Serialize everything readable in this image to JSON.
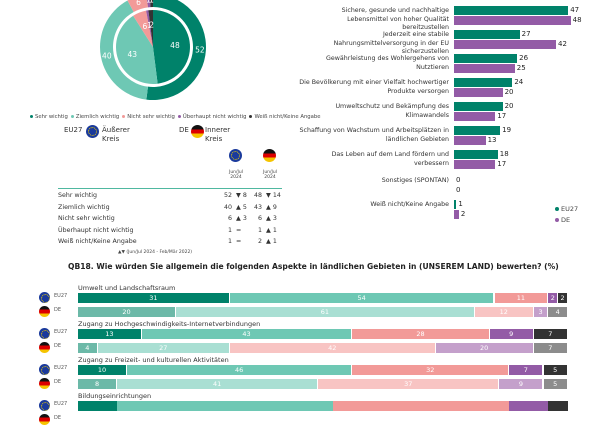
{
  "colors": {
    "sehr_wichtig": "#00826a",
    "ziemlich_wichtig": "#6ec8b4",
    "nicht_sehr_wichtig": "#f29a98",
    "ueberhaupt_nicht": "#935ba6",
    "weiss_nicht": "#333333",
    "de_sehr": "#6cb9a8",
    "de_ziemlich": "#a9dfd3",
    "de_nicht_sehr": "#f8c4c3",
    "de_ueberhaupt": "#c4a0cb",
    "de_weiss": "#8c8c8c",
    "eu27": "#00826a",
    "de": "#935ba6"
  },
  "donut": {
    "legend": [
      "Sehr wichtig",
      "Ziemlich wichtig",
      "Nicht sehr wichtig",
      "Überhaupt nicht wichtig",
      "Weiß nicht/Keine Angabe"
    ],
    "key_eu": "EU27",
    "key_eu_desc": "Äußerer Kreis",
    "key_de": "DE",
    "key_de_desc": "Innerer Kreis"
  },
  "table": {
    "col_eu_period": "Jun/Jul 2024",
    "col_de_period": "Jun/Jul 2024",
    "footnote": "▲▼ (Jun/Jul 2024 - Feb/Mär 2022)",
    "rows": [
      {
        "label": "Sehr wichtig",
        "eu": "52",
        "eu_change": "▼ 8",
        "de": "48",
        "de_change": "▼ 14"
      },
      {
        "label": "Ziemlich wichtig",
        "eu": "40",
        "eu_change": "▲ 5",
        "de": "43",
        "de_change": "▲ 9"
      },
      {
        "label": "Nicht sehr wichtig",
        "eu": "6",
        "eu_change": "▲ 3",
        "de": "6",
        "de_change": "▲ 3"
      },
      {
        "label": "Überhaupt nicht wichtig",
        "eu": "1",
        "eu_change": "=",
        "de": "1",
        "de_change": "▲ 1"
      },
      {
        "label": "Weiß nicht/Keine Angabe",
        "eu": "1",
        "eu_change": "=",
        "de": "2",
        "de_change": "▲ 1"
      }
    ]
  },
  "stacked": {
    "title": "QB18. Wie würden Sie allgemein die folgenden Aspekte in ländlichen Gebieten in (UNSEREM LAND) bewerten? (%)",
    "eu_code": "EU27",
    "de_code": "DE"
  },
  "chart_data": [
    {
      "type": "pie",
      "title": "",
      "categories": [
        "Sehr wichtig",
        "Ziemlich wichtig",
        "Nicht sehr wichtig",
        "Überhaupt nicht wichtig",
        "Weiß nicht/Keine Angabe"
      ],
      "series": [
        {
          "name": "EU27 (Äußerer Kreis)",
          "values": [
            52,
            40,
            6,
            1,
            1
          ]
        },
        {
          "name": "DE (Innerer Kreis)",
          "values": [
            48,
            43,
            6,
            1,
            2
          ]
        }
      ]
    },
    {
      "type": "bar",
      "orientation": "horizontal",
      "categories": [
        "Sichere, gesunde und nachhaltige Lebensmittel von hoher Qualität bereitzustellen",
        "Jederzeit eine stabile Nahrungsmittelversorgung in der EU sicherzustellen",
        "Gewährleistung des Wohlergehens von Nutztieren",
        "Die Bevölkerung mit einer Vielfalt hochwertiger Produkte versorgen",
        "Umweltschutz und Bekämpfung des Klimawandels",
        "Schaffung von Wachstum und Arbeitsplätzen in ländlichen Gebieten",
        "Das Leben auf dem Land fördern und verbessern",
        "Sonstiges (SPONTAN)",
        "Weiß nicht/Keine Angabe"
      ],
      "series": [
        {
          "name": "EU27",
          "values": [
            47,
            27,
            26,
            24,
            20,
            19,
            18,
            0,
            1
          ]
        },
        {
          "name": "DE",
          "values": [
            48,
            42,
            25,
            20,
            17,
            13,
            17,
            0,
            2
          ]
        }
      ],
      "legend": [
        "EU27",
        "DE"
      ],
      "legend_position": "bottom-right"
    },
    {
      "type": "bar",
      "orientation": "horizontal-stacked",
      "title": "QB18. Wie würden Sie allgemein die folgenden Aspekte in ländlichen Gebieten in (UNSEREM LAND) bewerten? (%)",
      "groups": [
        {
          "label": "Umwelt und Landschaftsraum",
          "eu": [
            31,
            54,
            11,
            2,
            2
          ],
          "de": [
            20,
            61,
            12,
            3,
            4
          ]
        },
        {
          "label": "Zugang zu Hochgeschwindigkeits-Internetverbindungen",
          "eu": [
            13,
            43,
            28,
            9,
            7
          ],
          "de": [
            4,
            27,
            42,
            20,
            7
          ]
        },
        {
          "label": "Zugang zu Freizeit- und kulturellen Aktivitäten",
          "eu": [
            10,
            46,
            32,
            7,
            5
          ],
          "de": [
            8,
            41,
            37,
            9,
            5
          ]
        },
        {
          "label": "Bildungseinrichtungen",
          "eu": [],
          "de": []
        }
      ]
    }
  ]
}
